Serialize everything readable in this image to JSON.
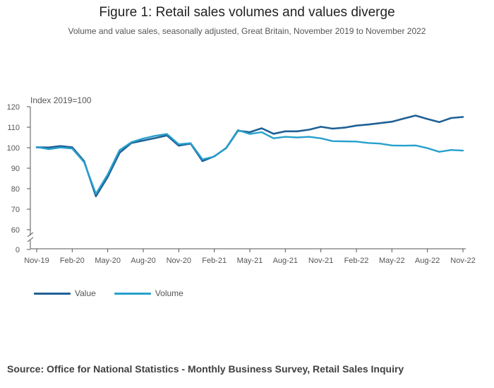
{
  "title": "Figure 1: Retail sales volumes and values diverge",
  "subtitle": "Volume and value sales, seasonally adjusted, Great Britain, November 2019 to November 2022",
  "source": "Source: Office for National Statistics - Monthly Business Survey, Retail Sales Inquiry",
  "chart_data": {
    "type": "line",
    "ylabel": "Index 2019=100",
    "ylim": [
      0,
      120
    ],
    "axis_break": [
      0,
      60
    ],
    "yticks": [
      0,
      60,
      70,
      80,
      90,
      100,
      110,
      120
    ],
    "x_tick_labels": [
      "Nov-19",
      "Feb-20",
      "May-20",
      "Aug-20",
      "Nov-20",
      "Feb-21",
      "May-21",
      "Aug-21",
      "Nov-21",
      "Feb-22",
      "May-22",
      "Aug-22",
      "Nov-22"
    ],
    "x": [
      "Nov-19",
      "Dec-19",
      "Jan-20",
      "Feb-20",
      "Mar-20",
      "Apr-20",
      "May-20",
      "Jun-20",
      "Jul-20",
      "Aug-20",
      "Sep-20",
      "Oct-20",
      "Nov-20",
      "Dec-20",
      "Jan-21",
      "Feb-21",
      "Mar-21",
      "Apr-21",
      "May-21",
      "Jun-21",
      "Jul-21",
      "Aug-21",
      "Sep-21",
      "Oct-21",
      "Nov-21",
      "Dec-21",
      "Jan-22",
      "Feb-22",
      "Mar-22",
      "Apr-22",
      "May-22",
      "Jun-22",
      "Jul-22",
      "Aug-22",
      "Sep-22",
      "Oct-22",
      "Nov-22"
    ],
    "grid": false,
    "legend_position": "bottom-left",
    "series": [
      {
        "name": "Value",
        "color": "#206095",
        "values": [
          100.2,
          100.1,
          100.8,
          100.2,
          93.5,
          76.3,
          85.8,
          97.5,
          102.3,
          103.5,
          104.7,
          106.0,
          101.0,
          102.0,
          93.5,
          95.8,
          99.8,
          108.3,
          107.6,
          109.5,
          106.8,
          108.0,
          108.0,
          108.8,
          110.2,
          109.3,
          109.8,
          110.8,
          111.3,
          112.0,
          112.7,
          114.2,
          115.7,
          114.0,
          112.5,
          114.5,
          115.0
        ]
      },
      {
        "name": "Volume",
        "color": "#27a0cc",
        "values": [
          100.3,
          99.3,
          100.1,
          99.6,
          93.0,
          77.5,
          87.0,
          98.8,
          102.7,
          104.5,
          105.8,
          106.7,
          101.7,
          102.2,
          94.3,
          95.7,
          99.9,
          108.6,
          106.7,
          107.6,
          104.6,
          105.3,
          105.0,
          105.3,
          104.6,
          103.2,
          103.1,
          103.0,
          102.3,
          102.0,
          101.1,
          101.0,
          101.1,
          99.8,
          98.0,
          98.9,
          98.6
        ]
      }
    ]
  }
}
